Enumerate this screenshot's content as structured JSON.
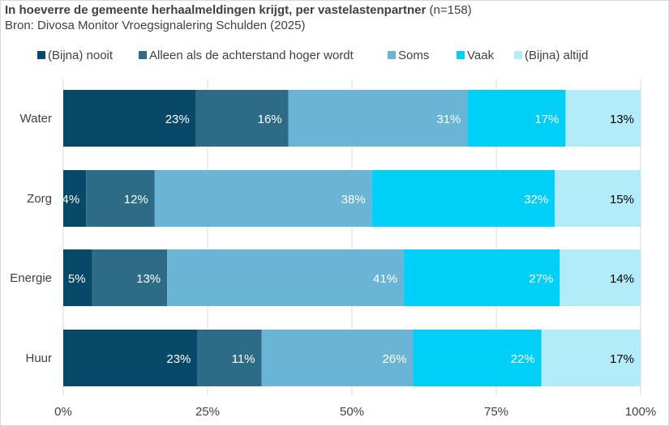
{
  "title": "In hoeverre de gemeente herhaalmeldingen krijgt, per vastelastenpartner",
  "title_n": "(n=158)",
  "subtitle": "Bron: Divosa Monitor Vroegsignalering Schulden (2025)",
  "colors": {
    "nooit": "#08496a",
    "alleen": "#2e6b87",
    "soms": "#6ab5d5",
    "vaak": "#00cff7",
    "altijd": "#b3ecf9",
    "grid": "#d9d9d9",
    "text": "#404040"
  },
  "chart_data": {
    "type": "bar",
    "orientation": "horizontal",
    "stacked": "percent",
    "categories": [
      "Water",
      "Zorg",
      "Energie",
      "Huur"
    ],
    "series": [
      {
        "name": "(Bijna) nooit",
        "color_key": "nooit",
        "values": [
          23,
          4,
          5,
          23
        ],
        "labels": [
          "23%",
          "4%",
          "5%",
          "23%"
        ]
      },
      {
        "name": "Alleen als de achterstand hoger wordt",
        "color_key": "alleen",
        "values": [
          16,
          12,
          13,
          11
        ],
        "labels": [
          "16%",
          "12%",
          "13%",
          "11%"
        ]
      },
      {
        "name": "Soms",
        "color_key": "soms",
        "values": [
          31,
          38,
          41,
          26
        ],
        "labels": [
          "31%",
          "38%",
          "41%",
          "26%"
        ]
      },
      {
        "name": "Vaak",
        "color_key": "vaak",
        "values": [
          17,
          32,
          27,
          22
        ],
        "labels": [
          "17%",
          "32%",
          "27%",
          "22%"
        ]
      },
      {
        "name": "(Bijna) altijd",
        "color_key": "altijd",
        "values": [
          13,
          15,
          14,
          17
        ],
        "labels": [
          "13%",
          "15%",
          "14%",
          "17%"
        ]
      }
    ],
    "xlim": [
      0,
      100
    ],
    "xticks": [
      0,
      25,
      50,
      75,
      100
    ],
    "xtick_labels": [
      "0%",
      "25%",
      "50%",
      "75%",
      "100%"
    ],
    "legend_position": "top",
    "grid": true
  }
}
